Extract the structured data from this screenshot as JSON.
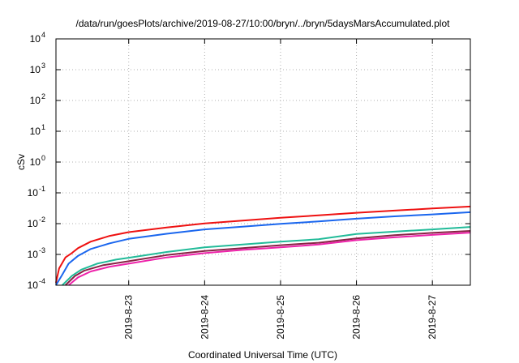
{
  "chart_data": {
    "type": "line",
    "title": "/data/run/goesPlots/archive/2019-08-27/10:00/bryn/../bryn/5daysMarsAccumulated.plot",
    "xlabel": "Coordinated Universal Time (UTC)",
    "ylabel": "cSv",
    "x_range": [
      "2019-08-22T01:00",
      "2019-08-27T12:00"
    ],
    "ylim": [
      0.0001,
      10000
    ],
    "y_scale": "log",
    "y_ticks": [
      {
        "value": 0.0001,
        "base": "10",
        "exp": "-4"
      },
      {
        "value": 0.001,
        "base": "10",
        "exp": "-3"
      },
      {
        "value": 0.01,
        "base": "10",
        "exp": "-2"
      },
      {
        "value": 0.1,
        "base": "10",
        "exp": "-1"
      },
      {
        "value": 1,
        "base": "10",
        "exp": "0"
      },
      {
        "value": 10,
        "base": "10",
        "exp": "1"
      },
      {
        "value": 100,
        "base": "10",
        "exp": "2"
      },
      {
        "value": 1000,
        "base": "10",
        "exp": "3"
      },
      {
        "value": 10000,
        "base": "10",
        "exp": "4"
      }
    ],
    "x_ticks": [
      {
        "value": "2019-08-23T00:00",
        "label": "2019-8-23"
      },
      {
        "value": "2019-08-24T00:00",
        "label": "2019-8-24"
      },
      {
        "value": "2019-08-25T00:00",
        "label": "2019-8-25"
      },
      {
        "value": "2019-08-26T00:00",
        "label": "2019-8-26"
      },
      {
        "value": "2019-08-27T00:00",
        "label": "2019-8-27"
      }
    ],
    "grid": true,
    "series": [
      {
        "color": "#ee1111",
        "points": [
          [
            "2019-08-22T01:00",
            0.00012
          ],
          [
            "2019-08-22T02:00",
            0.00035
          ],
          [
            "2019-08-22T04:00",
            0.0008
          ],
          [
            "2019-08-22T06:00",
            0.0011
          ],
          [
            "2019-08-22T08:00",
            0.0016
          ],
          [
            "2019-08-22T12:00",
            0.0026
          ],
          [
            "2019-08-22T18:00",
            0.004
          ],
          [
            "2019-08-23T00:00",
            0.0053
          ],
          [
            "2019-08-23T12:00",
            0.0075
          ],
          [
            "2019-08-24T00:00",
            0.0102
          ],
          [
            "2019-08-24T12:00",
            0.0125
          ],
          [
            "2019-08-25T00:00",
            0.0155
          ],
          [
            "2019-08-25T12:00",
            0.0185
          ],
          [
            "2019-08-26T00:00",
            0.0225
          ],
          [
            "2019-08-26T12:00",
            0.0265
          ],
          [
            "2019-08-27T00:00",
            0.031
          ],
          [
            "2019-08-27T12:00",
            0.036
          ]
        ]
      },
      {
        "color": "#1a66ee",
        "points": [
          [
            "2019-08-22T01:00",
            0.0001
          ],
          [
            "2019-08-22T03:00",
            0.00022
          ],
          [
            "2019-08-22T05:00",
            0.0005
          ],
          [
            "2019-08-22T08:00",
            0.0009
          ],
          [
            "2019-08-22T12:00",
            0.0015
          ],
          [
            "2019-08-22T18:00",
            0.0023
          ],
          [
            "2019-08-23T00:00",
            0.0032
          ],
          [
            "2019-08-23T12:00",
            0.0047
          ],
          [
            "2019-08-24T00:00",
            0.0065
          ],
          [
            "2019-08-24T12:00",
            0.008
          ],
          [
            "2019-08-25T00:00",
            0.0098
          ],
          [
            "2019-08-25T12:00",
            0.0118
          ],
          [
            "2019-08-26T00:00",
            0.0145
          ],
          [
            "2019-08-26T12:00",
            0.0172
          ],
          [
            "2019-08-27T00:00",
            0.02
          ],
          [
            "2019-08-27T12:00",
            0.0235
          ]
        ]
      },
      {
        "color": "#22bb99",
        "points": [
          [
            "2019-08-22T03:00",
            0.0001
          ],
          [
            "2019-08-22T06:00",
            0.0002
          ],
          [
            "2019-08-22T09:00",
            0.00032
          ],
          [
            "2019-08-22T14:00",
            0.0005
          ],
          [
            "2019-08-22T20:00",
            0.00068
          ],
          [
            "2019-08-23T00:00",
            0.00078
          ],
          [
            "2019-08-23T12:00",
            0.0012
          ],
          [
            "2019-08-24T00:00",
            0.0017
          ],
          [
            "2019-08-24T12:00",
            0.0021
          ],
          [
            "2019-08-25T00:00",
            0.0026
          ],
          [
            "2019-08-25T12:00",
            0.0031
          ],
          [
            "2019-08-26T00:00",
            0.0046
          ],
          [
            "2019-08-26T12:00",
            0.0055
          ],
          [
            "2019-08-27T00:00",
            0.0065
          ],
          [
            "2019-08-27T12:00",
            0.0078
          ]
        ]
      },
      {
        "color": "#882244",
        "points": [
          [
            "2019-08-22T04:00",
            0.0001
          ],
          [
            "2019-08-22T07:00",
            0.0002
          ],
          [
            "2019-08-22T10:00",
            0.0003
          ],
          [
            "2019-08-22T16:00",
            0.00045
          ],
          [
            "2019-08-23T00:00",
            0.0006
          ],
          [
            "2019-08-23T12:00",
            0.00095
          ],
          [
            "2019-08-24T00:00",
            0.0013
          ],
          [
            "2019-08-24T12:00",
            0.0016
          ],
          [
            "2019-08-25T00:00",
            0.002
          ],
          [
            "2019-08-25T12:00",
            0.0024
          ],
          [
            "2019-08-26T00:00",
            0.0033
          ],
          [
            "2019-08-26T12:00",
            0.0042
          ],
          [
            "2019-08-27T00:00",
            0.005
          ],
          [
            "2019-08-27T12:00",
            0.0058
          ]
        ]
      },
      {
        "color": "#ee22aa",
        "points": [
          [
            "2019-08-22T05:00",
            0.0001
          ],
          [
            "2019-08-22T08:00",
            0.00018
          ],
          [
            "2019-08-22T12:00",
            0.00028
          ],
          [
            "2019-08-22T18:00",
            0.0004
          ],
          [
            "2019-08-23T00:00",
            0.0005
          ],
          [
            "2019-08-23T12:00",
            0.0008
          ],
          [
            "2019-08-24T00:00",
            0.0011
          ],
          [
            "2019-08-24T12:00",
            0.0014
          ],
          [
            "2019-08-25T00:00",
            0.0017
          ],
          [
            "2019-08-25T12:00",
            0.0021
          ],
          [
            "2019-08-26T00:00",
            0.0029
          ],
          [
            "2019-08-26T12:00",
            0.0036
          ],
          [
            "2019-08-27T00:00",
            0.0043
          ],
          [
            "2019-08-27T12:00",
            0.0051
          ]
        ]
      }
    ]
  }
}
